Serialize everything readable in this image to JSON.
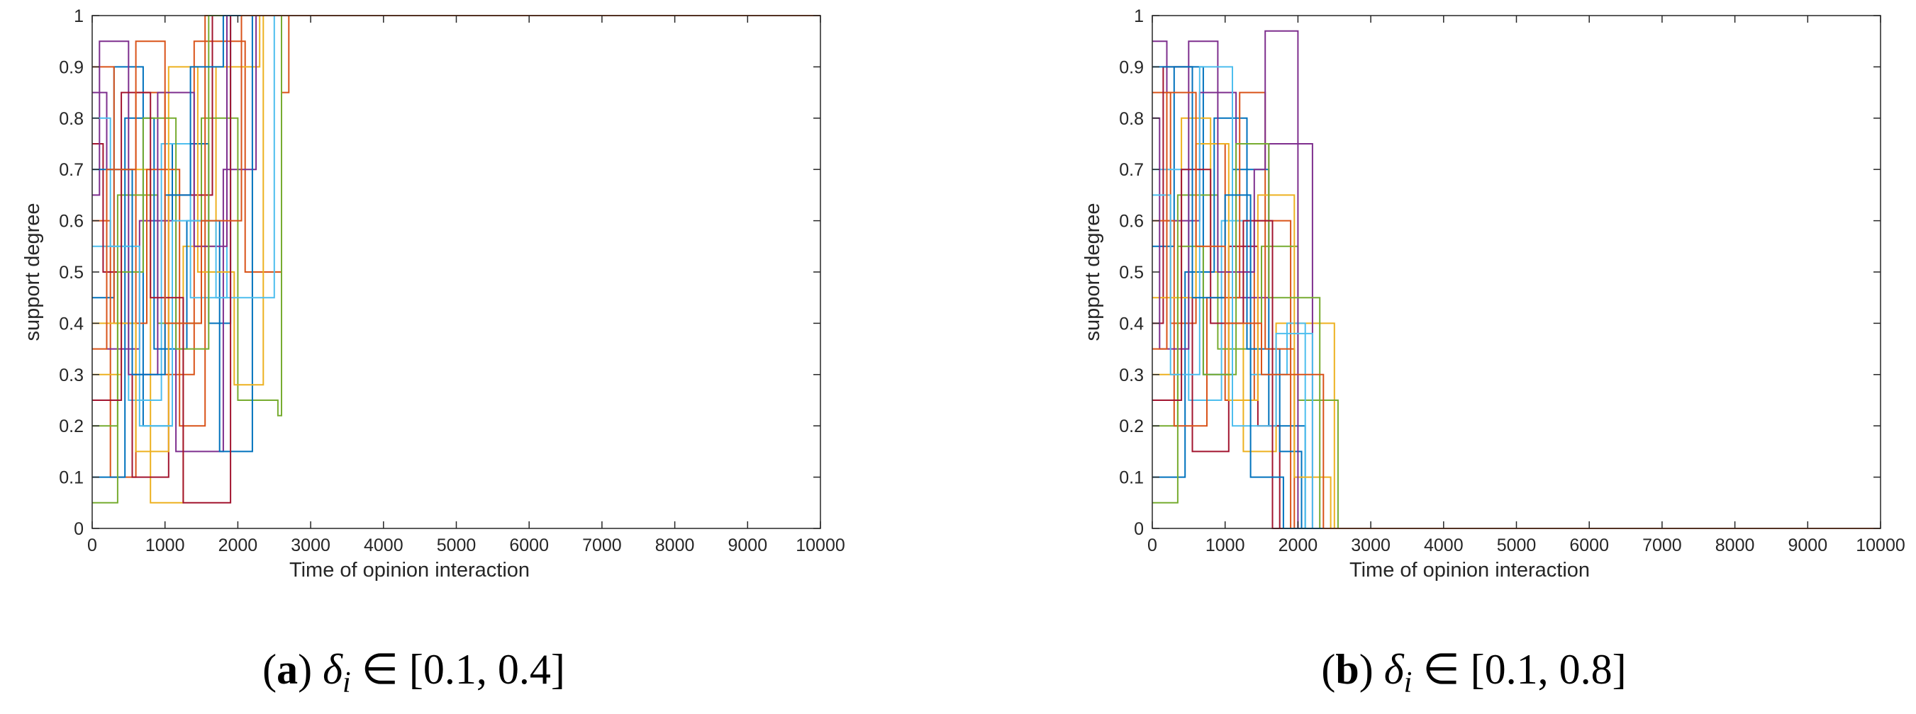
{
  "chart_data": [
    {
      "type": "line",
      "panel": "a",
      "caption": {
        "open": "(",
        "letter": "a",
        "close": ")",
        "symbol": "δ",
        "subscript": "i",
        "relation": "∈",
        "interval": "[0.1, 0.4]"
      },
      "xlabel": "Time of opinion interaction",
      "ylabel": "support degree",
      "xlim": [
        0,
        10000
      ],
      "ylim": [
        0,
        1
      ],
      "xticks": [
        0,
        1000,
        2000,
        3000,
        4000,
        5000,
        6000,
        7000,
        8000,
        9000,
        10000
      ],
      "yticks": [
        0,
        0.1,
        0.2,
        0.3,
        0.4,
        0.5,
        0.6,
        0.7,
        0.8,
        0.9,
        1
      ],
      "grid": false,
      "legend": "none",
      "converged_value": 1,
      "series": [
        {
          "color": "#0072BD",
          "x": [
            0,
            300,
            700,
            1100,
            1600,
            1900
          ],
          "y": [
            0.45,
            0.9,
            0.2,
            0.75,
            0.4,
            1
          ]
        },
        {
          "color": "#D95319",
          "x": [
            0,
            250,
            600,
            1000,
            1400,
            2100,
            2600,
            2700
          ],
          "y": [
            0.6,
            0.1,
            0.85,
            0.3,
            0.95,
            0.5,
            0.85,
            1
          ]
        },
        {
          "color": "#EDB120",
          "x": [
            0,
            400,
            800,
            1250,
            1700,
            2300
          ],
          "y": [
            0.3,
            0.7,
            0.05,
            0.55,
            0.9,
            1
          ]
        },
        {
          "color": "#7E2F8E",
          "x": [
            0,
            200,
            650,
            1150,
            1800,
            2250
          ],
          "y": [
            0.85,
            0.35,
            0.6,
            0.15,
            0.7,
            1
          ]
        },
        {
          "color": "#77AC30",
          "x": [
            0,
            350,
            900,
            1500,
            2000,
            2550,
            2600
          ],
          "y": [
            0.2,
            0.65,
            0.4,
            0.8,
            0.25,
            0.22,
            1
          ]
        },
        {
          "color": "#4DBEEE",
          "x": [
            0,
            500,
            950,
            1350,
            1850
          ],
          "y": [
            0.55,
            0.25,
            0.75,
            0.45,
            1
          ]
        },
        {
          "color": "#A2142F",
          "x": [
            0,
            150,
            550,
            1050,
            1650
          ],
          "y": [
            0.75,
            0.5,
            0.1,
            0.65,
            1
          ]
        },
        {
          "color": "#0072BD",
          "x": [
            0,
            450,
            850,
            1300,
            1750,
            2200
          ],
          "y": [
            0.1,
            0.8,
            0.35,
            0.6,
            0.15,
            1
          ]
        },
        {
          "color": "#D95319",
          "x": [
            0,
            300,
            750,
            1200,
            1550
          ],
          "y": [
            0.9,
            0.4,
            0.7,
            0.2,
            1
          ]
        },
        {
          "color": "#EDB120",
          "x": [
            0,
            600,
            1050,
            1450,
            1950,
            2350
          ],
          "y": [
            0.4,
            0.15,
            0.9,
            0.5,
            0.28,
            1
          ]
        },
        {
          "color": "#7E2F8E",
          "x": [
            0,
            100,
            500,
            900,
            1400,
            1850
          ],
          "y": [
            0.65,
            0.95,
            0.3,
            0.85,
            0.55,
            1
          ]
        },
        {
          "color": "#77AC30",
          "x": [
            0,
            350,
            700,
            1150,
            1600
          ],
          "y": [
            0.05,
            0.5,
            0.8,
            0.35,
            1
          ]
        },
        {
          "color": "#4DBEEE",
          "x": [
            0,
            250,
            650,
            1100,
            1700,
            2500
          ],
          "y": [
            0.8,
            0.55,
            0.2,
            0.6,
            0.45,
            1
          ]
        },
        {
          "color": "#A2142F",
          "x": [
            0,
            400,
            800,
            1250,
            1900
          ],
          "y": [
            0.25,
            0.85,
            0.45,
            0.05,
            1
          ]
        },
        {
          "color": "#0072BD",
          "x": [
            0,
            550,
            1000,
            1350,
            1800
          ],
          "y": [
            0.7,
            0.3,
            0.65,
            0.9,
            1
          ]
        },
        {
          "color": "#D95319",
          "x": [
            0,
            200,
            600,
            1000,
            1500,
            2050
          ],
          "y": [
            0.35,
            0.7,
            0.95,
            0.4,
            0.6,
            1
          ]
        }
      ]
    },
    {
      "type": "line",
      "panel": "b",
      "caption": {
        "open": "(",
        "letter": "b",
        "close": ")",
        "symbol": "δ",
        "subscript": "i",
        "relation": "∈",
        "interval": "[0.1, 0.8]"
      },
      "xlabel": "Time of opinion interaction",
      "ylabel": "support degree",
      "xlim": [
        0,
        10000
      ],
      "ylim": [
        0,
        1
      ],
      "xticks": [
        0,
        1000,
        2000,
        3000,
        4000,
        5000,
        6000,
        7000,
        8000,
        9000,
        10000
      ],
      "yticks": [
        0,
        0.1,
        0.2,
        0.3,
        0.4,
        0.5,
        0.6,
        0.7,
        0.8,
        0.9,
        1
      ],
      "grid": false,
      "legend": "none",
      "converged_value": 0,
      "series": [
        {
          "color": "#0072BD",
          "x": [
            0,
            300,
            700,
            1100,
            1600,
            2100
          ],
          "y": [
            0.55,
            0.9,
            0.3,
            0.7,
            0.2,
            0
          ]
        },
        {
          "color": "#D95319",
          "x": [
            0,
            250,
            600,
            1000,
            1400,
            1900
          ],
          "y": [
            0.85,
            0.4,
            0.75,
            0.25,
            0.6,
            0
          ]
        },
        {
          "color": "#EDB120",
          "x": [
            0,
            400,
            800,
            1250,
            1700,
            2400,
            2500
          ],
          "y": [
            0.3,
            0.8,
            0.5,
            0.15,
            0.4,
            0.4,
            0
          ]
        },
        {
          "color": "#7E2F8E",
          "x": [
            0,
            200,
            650,
            1150,
            1600,
            2200
          ],
          "y": [
            0.95,
            0.6,
            0.85,
            0.45,
            0.75,
            0
          ]
        },
        {
          "color": "#77AC30",
          "x": [
            0,
            350,
            900,
            1500,
            2000,
            2550
          ],
          "y": [
            0.2,
            0.65,
            0.35,
            0.55,
            0.25,
            0
          ]
        },
        {
          "color": "#4DBEEE",
          "x": [
            0,
            500,
            950,
            1350,
            1850,
            2100
          ],
          "y": [
            0.7,
            0.25,
            0.6,
            0.3,
            0.4,
            0
          ]
        },
        {
          "color": "#A2142F",
          "x": [
            0,
            150,
            550,
            1050,
            1450,
            1750
          ],
          "y": [
            0.4,
            0.9,
            0.15,
            0.55,
            0.2,
            0
          ]
        },
        {
          "color": "#0072BD",
          "x": [
            0,
            450,
            850,
            1300,
            1750,
            2050
          ],
          "y": [
            0.1,
            0.5,
            0.8,
            0.35,
            0.15,
            0
          ]
        },
        {
          "color": "#D95319",
          "x": [
            0,
            300,
            750,
            1200,
            1550,
            1950
          ],
          "y": [
            0.6,
            0.2,
            0.45,
            0.85,
            0.35,
            0
          ]
        },
        {
          "color": "#EDB120",
          "x": [
            0,
            600,
            1050,
            1450,
            1950,
            2450
          ],
          "y": [
            0.45,
            0.75,
            0.25,
            0.65,
            0.1,
            0
          ]
        },
        {
          "color": "#7E2F8E",
          "x": [
            0,
            100,
            500,
            900,
            1400,
            1550,
            2000
          ],
          "y": [
            0.8,
            0.35,
            0.95,
            0.5,
            0.7,
            0.97,
            0
          ]
        },
        {
          "color": "#77AC30",
          "x": [
            0,
            350,
            700,
            1150,
            1600,
            2300
          ],
          "y": [
            0.05,
            0.55,
            0.3,
            0.75,
            0.45,
            0
          ]
        },
        {
          "color": "#4DBEEE",
          "x": [
            0,
            250,
            650,
            1100,
            1700,
            2200
          ],
          "y": [
            0.65,
            0.3,
            0.9,
            0.2,
            0.38,
            0
          ]
        },
        {
          "color": "#A2142F",
          "x": [
            0,
            400,
            800,
            1250,
            1650
          ],
          "y": [
            0.25,
            0.7,
            0.4,
            0.6,
            0
          ]
        },
        {
          "color": "#0072BD",
          "x": [
            0,
            550,
            1000,
            1350,
            1800
          ],
          "y": [
            0.9,
            0.45,
            0.65,
            0.1,
            0
          ]
        },
        {
          "color": "#D95319",
          "x": [
            0,
            200,
            600,
            1000,
            1500,
            2350
          ],
          "y": [
            0.35,
            0.85,
            0.55,
            0.4,
            0.3,
            0
          ]
        }
      ]
    }
  ]
}
